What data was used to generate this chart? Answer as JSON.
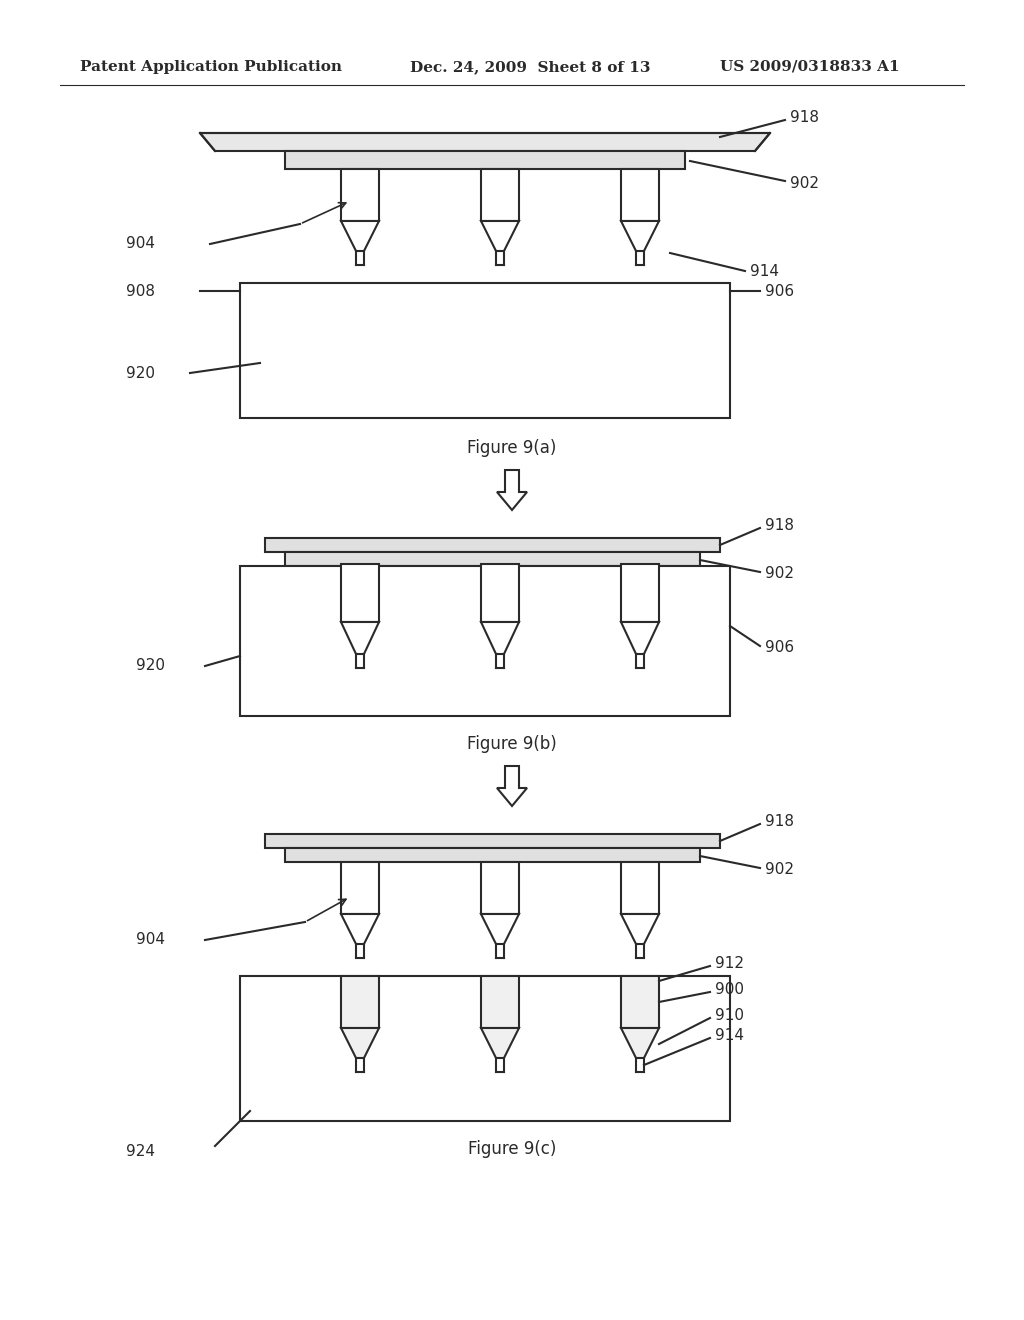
{
  "bg_color": "#ffffff",
  "line_color": "#2a2a2a",
  "header_left": "Patent Application Publication",
  "header_mid": "Dec. 24, 2009  Sheet 8 of 13",
  "header_right": "US 2009/0318833 A1",
  "fig_a_label": "Figure 9(a)",
  "fig_b_label": "Figure 9(b)",
  "fig_c_label": "Figure 9(c)"
}
